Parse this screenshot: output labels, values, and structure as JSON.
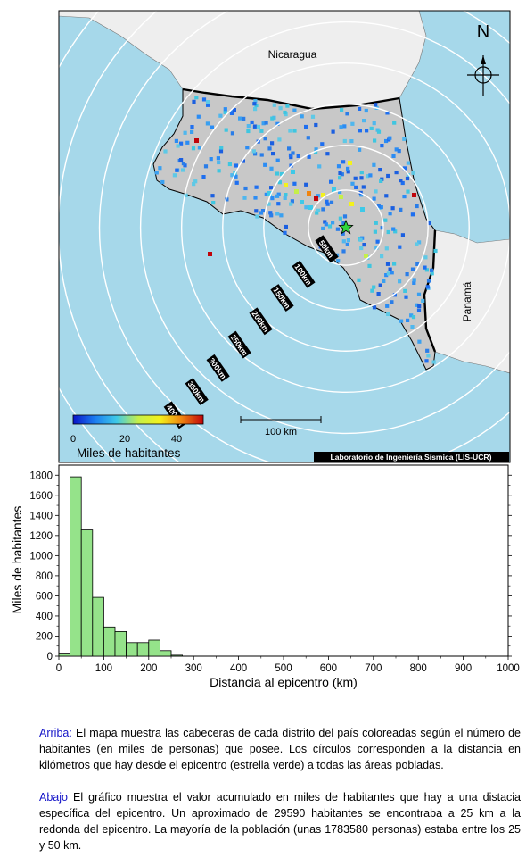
{
  "map": {
    "country_labels": [
      {
        "name": "Nicaragua"
      },
      {
        "name": "Panamá"
      }
    ],
    "north_label": "N",
    "ring_labels": [
      "50km",
      "100km",
      "150km",
      "200km",
      "250km",
      "300km",
      "350km",
      "400km"
    ],
    "scale_bar_label": "100 km",
    "colorbar": {
      "ticks": [
        "0",
        "20",
        "40"
      ],
      "label": "Miles de habitantes",
      "colors": [
        "#0a14c8",
        "#1b7cf0",
        "#3ec9e8",
        "#c5ef4a",
        "#f3f21c",
        "#f08410",
        "#c0040a"
      ]
    },
    "credit": "Laboratorio de Ingeniería Sísmica (LIS-UCR)",
    "colors": {
      "ocean": "#a6d8ea",
      "land": "#c8c8c8",
      "neighbor": "#eeeeee",
      "epicenter": "#2fd63c"
    }
  },
  "chart_data": {
    "type": "bar",
    "xlabel": "Distancia al epicentro (km)",
    "ylabel": "Miles de habitantes",
    "xlim": [
      0,
      1000
    ],
    "ylim": [
      0,
      1900
    ],
    "x_ticks": [
      "0",
      "100",
      "200",
      "300",
      "400",
      "500",
      "600",
      "700",
      "800",
      "900",
      "1000"
    ],
    "y_ticks": [
      "0",
      "200",
      "400",
      "600",
      "800",
      "1000",
      "1200",
      "1400",
      "1600",
      "1800"
    ],
    "bin_width": 25,
    "bin_starts": [
      0,
      25,
      50,
      75,
      100,
      125,
      150,
      175,
      200,
      225,
      250
    ],
    "values": [
      30,
      1784,
      1255,
      585,
      290,
      245,
      135,
      135,
      160,
      55,
      10
    ],
    "bar_color": "#95e38a"
  },
  "captions": {
    "top_key": "Arriba:",
    "top_text": " El mapa muestra las cabeceras de cada distrito del país coloreadas según el número de habitantes (en miles de personas) que posee.  Los círculos corresponden a la distancia en kilómetros que hay desde el epicentro (estrella verde) a todas las áreas pobladas.",
    "bottom_key": "Abajo",
    "bottom_text": " El gráfico muestra el valor acumulado en miles de habitantes que hay a una distacia específica del epicentro.  Un aproximado de 29590 habitantes se encontraba a 25 km a la redonda del epicentro.  La mayoría de la población (unas 1783580 personas) estaba entre los 25 y 50 km."
  }
}
